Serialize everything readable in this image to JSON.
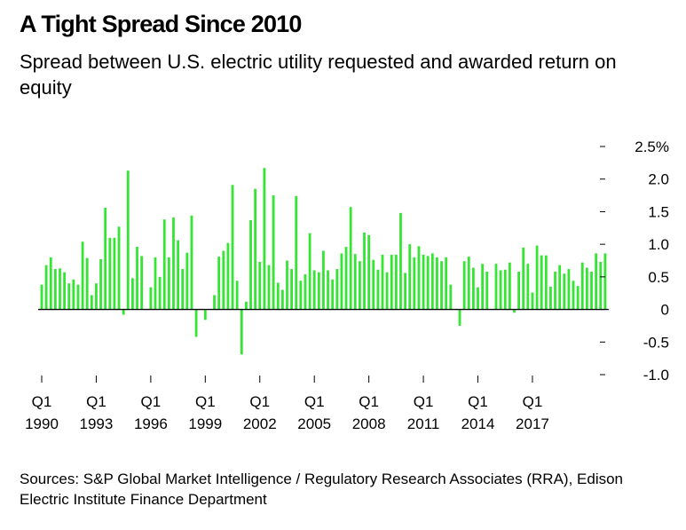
{
  "title": "A Tight Spread Since 2010",
  "subtitle": "Spread between U.S. electric utility requested and awarded return on equity",
  "source": "Sources: S&P Global Market Intelligence / Regulatory Research Associates (RRA), Edison Electric Institute Finance Department",
  "chart_data": {
    "type": "bar",
    "color": "#34e534",
    "zero_line_color": "#000000",
    "ylim": [
      -1.0,
      2.5
    ],
    "yticks": [
      {
        "value": 2.5,
        "label": "2.5%"
      },
      {
        "value": 2.0,
        "label": "2.0"
      },
      {
        "value": 1.5,
        "label": "1.5"
      },
      {
        "value": 1.0,
        "label": "1.0"
      },
      {
        "value": 0.5,
        "label": "0.5"
      },
      {
        "value": 0.0,
        "label": "0"
      },
      {
        "value": -0.5,
        "label": "-0.5"
      },
      {
        "value": -1.0,
        "label": "-1.0"
      }
    ],
    "first_period": "Q1 1990",
    "xticks": [
      {
        "index": 0,
        "quarter": "Q1",
        "year": "1990"
      },
      {
        "index": 12,
        "quarter": "Q1",
        "year": "1993"
      },
      {
        "index": 24,
        "quarter": "Q1",
        "year": "1996"
      },
      {
        "index": 36,
        "quarter": "Q1",
        "year": "1999"
      },
      {
        "index": 48,
        "quarter": "Q1",
        "year": "2002"
      },
      {
        "index": 60,
        "quarter": "Q1",
        "year": "2005"
      },
      {
        "index": 72,
        "quarter": "Q1",
        "year": "2008"
      },
      {
        "index": 84,
        "quarter": "Q1",
        "year": "2011"
      },
      {
        "index": 96,
        "quarter": "Q1",
        "year": "2014"
      },
      {
        "index": 108,
        "quarter": "Q1",
        "year": "2017"
      }
    ],
    "values": [
      0.38,
      0.68,
      0.8,
      0.62,
      0.63,
      0.57,
      0.4,
      0.46,
      0.38,
      1.04,
      0.79,
      0.22,
      0.4,
      0.77,
      1.56,
      1.1,
      1.1,
      1.27,
      -0.08,
      2.13,
      0.48,
      0.96,
      0.82,
      null,
      0.34,
      0.8,
      0.5,
      1.38,
      0.8,
      1.41,
      1.06,
      0.62,
      0.87,
      1.44,
      -0.42,
      null,
      -0.16,
      null,
      0.22,
      0.81,
      0.9,
      1.02,
      1.91,
      0.44,
      -0.69,
      0.12,
      1.37,
      1.85,
      0.73,
      2.17,
      0.68,
      1.75,
      0.41,
      0.3,
      0.75,
      0.62,
      1.74,
      0.44,
      0.54,
      1.17,
      0.6,
      0.57,
      0.9,
      0.6,
      0.46,
      0.62,
      0.86,
      0.96,
      1.57,
      0.85,
      0.74,
      1.18,
      1.14,
      0.76,
      0.61,
      0.84,
      0.57,
      0.84,
      0.84,
      1.48,
      0.56,
      1.0,
      0.8,
      0.97,
      0.84,
      0.82,
      0.86,
      0.8,
      0.74,
      0.8,
      0.38,
      null,
      -0.25,
      0.74,
      0.81,
      0.64,
      0.34,
      0.7,
      0.58,
      null,
      0.7,
      0.6,
      0.61,
      0.72,
      -0.05,
      0.58,
      0.95,
      0.7,
      0.26,
      0.98,
      0.83,
      0.83,
      0.35,
      0.58,
      0.68,
      0.55,
      0.62,
      0.44,
      0.36,
      0.72,
      0.64,
      0.58,
      0.86,
      0.73,
      0.86
    ]
  }
}
